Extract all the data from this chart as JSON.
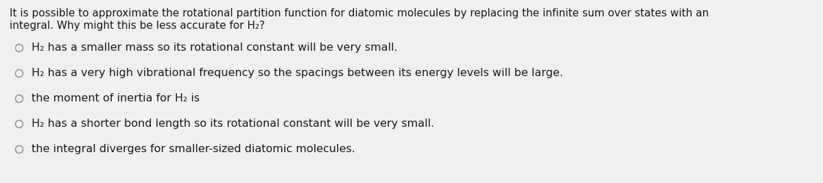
{
  "bg_color": "#f0f0f0",
  "text_color": "#1a1a1a",
  "circle_color": "#888888",
  "q_line1": "It is possible to approximate the rotational partition function for diatomic molecules by replacing the infinite sum over states with an",
  "q_line2": "integral. Why might this be less accurate for H₂?",
  "options": [
    "H₂ has a smaller mass so its rotational constant will be very small.",
    "H₂ has a very high vibrational frequency so the spacings between its energy levels will be large.",
    "the moment of inertia for H₂ is",
    "H₂ has a shorter bond length so its rotational constant will be very small.",
    "the integral diverges for smaller-sized diatomic molecules."
  ],
  "figsize": [
    12.0,
    2.67
  ],
  "dpi": 100,
  "fontsize": 11.5,
  "q_fontsize": 11.0
}
